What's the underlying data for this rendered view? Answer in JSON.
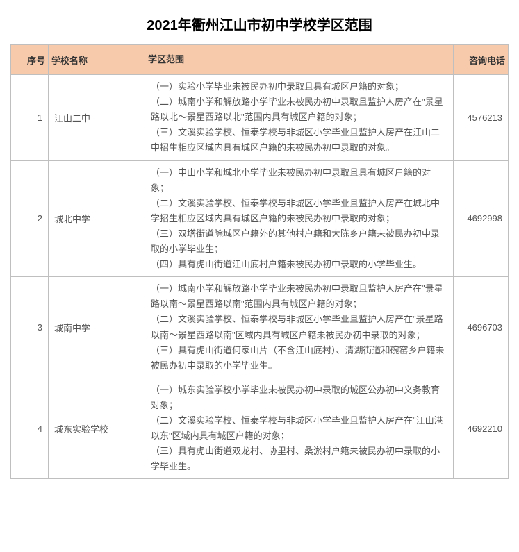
{
  "title": "2021年衢州江山市初中学校学区范围",
  "columns": [
    "序号",
    "学校名称",
    "学区范围",
    "咨询电话"
  ],
  "rows": [
    {
      "idx": "1",
      "name": "江山二中",
      "scope": "（一）实验小学毕业未被民办初中录取且具有城区户籍的对象；\n（二）城南小学和解放路小学毕业未被民办初中录取且监护人房产在\"景星路以北～景星西路以北\"范围内具有城区户籍的对象；\n（三）文溪实验学校、恒泰学校与非城区小学毕业且监护人房产在江山二中招生相应区域内具有城区户籍的未被民办初中录取的对象。",
      "phone": "4576213"
    },
    {
      "idx": "2",
      "name": "城北中学",
      "scope": "（一）中山小学和城北小学毕业未被民办初中录取且具有城区户籍的对象；\n（二）文溪实验学校、恒泰学校与非城区小学毕业且监护人房产在城北中学招生相应区域内具有城区户籍的未被民办初中录取的对象；\n（三）双塔街道除城区户籍外的其他村户籍和大陈乡户籍未被民办初中录取的小学毕业生；\n（四）具有虎山街道江山底村户籍未被民办初中录取的小学毕业生。",
      "phone": "4692998"
    },
    {
      "idx": "3",
      "name": "城南中学",
      "scope": "（一）城南小学和解放路小学毕业未被民办初中录取且监护人房产在\"景星路以南～景星西路以南\"范围内具有城区户籍的对象；\n（二）文溪实验学校、恒泰学校与非城区小学毕业且监护人房产在\"景星路以南～景星西路以南\"区域内具有城区户籍未被民办初中录取的对象；\n（三）具有虎山街道何家山片（不含江山底村）、清湖街道和碗窑乡户籍未被民办初中录取的小学毕业生。",
      "phone": "4696703"
    },
    {
      "idx": "4",
      "name": "城东实验学校",
      "scope": "（一）城东实验学校小学毕业未被民办初中录取的城区公办初中义务教育对象；\n（二）文溪实验学校、恒泰学校与非城区小学毕业且监护人房产在\"江山港以东\"区域内具有城区户籍的对象；\n（三）具有虎山街道双龙村、协里村、桑淤村户籍未被民办初中录取的小学毕业生。",
      "phone": "4692210"
    }
  ],
  "colors": {
    "header_bg": "#f7caac",
    "border": "#bfbfbf",
    "text": "#555555"
  }
}
